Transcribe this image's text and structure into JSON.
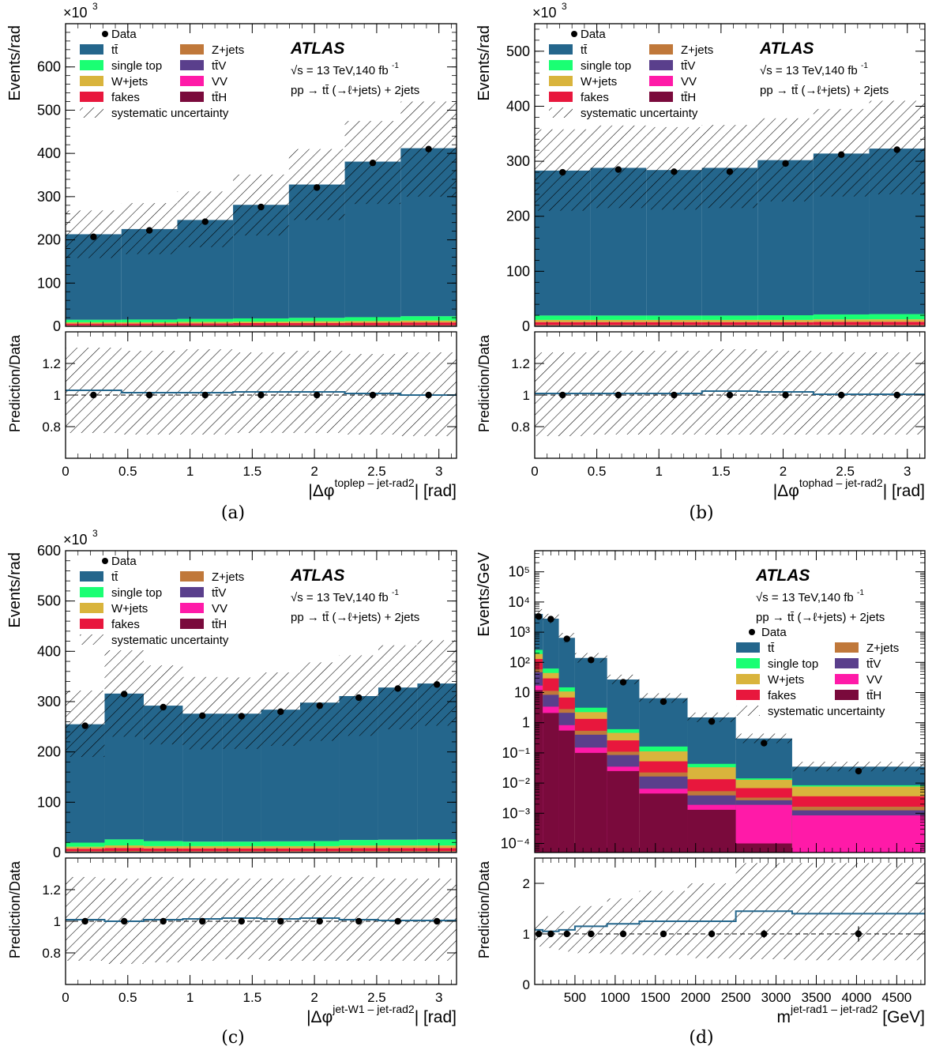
{
  "colors": {
    "ttbar": "#24668c",
    "single_top": "#1aff73",
    "wjets": "#d9b43c",
    "fakes": "#e8173d",
    "zjets": "#c0783a",
    "ttv": "#5a3f8c",
    "vv": "#ff1aa8",
    "tth": "#7a0a3c",
    "data": "#000000",
    "ratio_line": "#24668c"
  },
  "legend": {
    "data": "Data",
    "ttbar": "tt̄",
    "single_top": "single top",
    "wjets": "W+jets",
    "fakes": "fakes",
    "zjets": "Z+jets",
    "ttv": "tt̄V",
    "vv": "VV",
    "tth": "tt̄H",
    "syst": "systematic uncertainty"
  },
  "atlas": {
    "label": "ATLAS",
    "energy": "√s = 13 TeV,140 fb",
    "energy_sup": "-1",
    "process": "pp → tt̄ (→ℓ+jets) + 2jets"
  },
  "chart_data": [
    {
      "type": "bar",
      "caption": "(a)",
      "ylabel": "Events/rad",
      "ratio_ylabel": "Prediction/Data",
      "xlabel_main": "|Δφ",
      "xlabel_sup": "toplep – jet-rad2",
      "xlabel_tail": "| [rad]",
      "y_multiplier": "×10",
      "y_multiplier_sup": "3",
      "xlim": [
        0,
        3.1416
      ],
      "ylim": [
        0,
        700
      ],
      "ratio_ylim": [
        0.6,
        1.4
      ],
      "xticks": [
        "0",
        "0.5",
        "1",
        "1.5",
        "2",
        "2.5",
        "3"
      ],
      "xtick_values": [
        0,
        0.5,
        1,
        1.5,
        2,
        2.5,
        3
      ],
      "yticks": [
        "0",
        "100",
        "200",
        "300",
        "400",
        "500",
        "600"
      ],
      "ytick_values": [
        0,
        100,
        200,
        300,
        400,
        500,
        600
      ],
      "ratio_yticks": [
        "0.8",
        "1",
        "1.2"
      ],
      "ratio_ytick_values": [
        0.8,
        1.0,
        1.2
      ],
      "bin_edges": [
        0,
        0.449,
        0.898,
        1.346,
        1.795,
        2.244,
        2.693,
        3.1416
      ],
      "data": [
        207,
        222,
        242,
        276,
        321,
        378,
        410
      ],
      "total": [
        213,
        225,
        246,
        281,
        328,
        381,
        412
      ],
      "unc_low": [
        158,
        167,
        183,
        210,
        246,
        283,
        300
      ],
      "unc_high": [
        268,
        285,
        312,
        351,
        410,
        475,
        520
      ],
      "bkg": {
        "single_top": [
          6,
          6.5,
          7,
          7.5,
          8,
          9,
          10
        ],
        "wjets": [
          3,
          3,
          3.5,
          3.5,
          4,
          4,
          4.5
        ],
        "fakes": [
          4,
          4,
          4.5,
          5,
          5,
          5.5,
          6
        ],
        "zjets": [
          1,
          1,
          1,
          1,
          1.2,
          1.2,
          1.3
        ],
        "ttv": [
          0.5,
          0.5,
          0.5,
          0.5,
          0.6,
          0.6,
          0.7
        ],
        "vv": [
          0.3,
          0.3,
          0.3,
          0.3,
          0.3,
          0.3,
          0.3
        ],
        "tth": [
          0.4,
          0.4,
          0.4,
          0.5,
          0.5,
          0.5,
          0.6
        ]
      },
      "ratio": [
        1.03,
        1.015,
        1.015,
        1.02,
        1.02,
        1.01,
        1.0
      ],
      "ratio_unc_low": [
        0.76,
        0.75,
        0.75,
        0.76,
        0.76,
        0.75,
        0.74
      ],
      "ratio_unc_high": [
        1.3,
        1.28,
        1.29,
        1.27,
        1.28,
        1.26,
        1.27
      ]
    },
    {
      "type": "bar",
      "caption": "(b)",
      "ylabel": "Events/rad",
      "ratio_ylabel": "Prediction/Data",
      "xlabel_main": "|Δφ",
      "xlabel_sup": "tophad – jet-rad2",
      "xlabel_tail": "| [rad]",
      "y_multiplier": "×10",
      "y_multiplier_sup": "3",
      "xlim": [
        0,
        3.1416
      ],
      "ylim": [
        0,
        550
      ],
      "ratio_ylim": [
        0.6,
        1.4
      ],
      "xticks": [
        "0",
        "0.5",
        "1",
        "1.5",
        "2",
        "2.5",
        "3"
      ],
      "xtick_values": [
        0,
        0.5,
        1,
        1.5,
        2,
        2.5,
        3
      ],
      "yticks": [
        "0",
        "100",
        "200",
        "300",
        "400",
        "500"
      ],
      "ytick_values": [
        0,
        100,
        200,
        300,
        400,
        500
      ],
      "ratio_yticks": [
        "0.8",
        "1",
        "1.2"
      ],
      "ratio_ytick_values": [
        0.8,
        1.0,
        1.2
      ],
      "bin_edges": [
        0,
        0.449,
        0.898,
        1.346,
        1.795,
        2.244,
        2.693,
        3.1416
      ],
      "data": [
        280,
        285,
        281,
        281,
        296,
        312,
        321
      ],
      "total": [
        283,
        288,
        284,
        288,
        302,
        314,
        323
      ],
      "unc_low": [
        210,
        215,
        212,
        215,
        227,
        236,
        240
      ],
      "unc_high": [
        358,
        365,
        362,
        366,
        378,
        395,
        410
      ],
      "bkg": {
        "single_top": [
          8,
          8,
          8,
          8,
          8.5,
          9,
          9.5
        ],
        "wjets": [
          4,
          4,
          4,
          4,
          4,
          4.5,
          4.5
        ],
        "fakes": [
          5,
          5,
          5,
          5,
          5,
          5.5,
          5.5
        ],
        "zjets": [
          1.2,
          1.2,
          1.2,
          1.2,
          1.2,
          1.2,
          1.3
        ],
        "ttv": [
          0.6,
          0.6,
          0.6,
          0.6,
          0.6,
          0.6,
          0.6
        ],
        "vv": [
          0.3,
          0.3,
          0.3,
          0.3,
          0.3,
          0.3,
          0.3
        ],
        "tth": [
          0.5,
          0.5,
          0.5,
          0.5,
          0.5,
          0.5,
          0.5
        ]
      },
      "ratio": [
        1.01,
        1.01,
        1.01,
        1.025,
        1.02,
        1.005,
        1.005
      ],
      "ratio_unc_low": [
        0.74,
        0.75,
        0.75,
        0.75,
        0.75,
        0.75,
        0.75
      ],
      "ratio_unc_high": [
        1.27,
        1.28,
        1.28,
        1.29,
        1.28,
        1.27,
        1.27
      ]
    },
    {
      "type": "bar",
      "caption": "(c)",
      "ylabel": "Events/rad",
      "ratio_ylabel": "Prediction/Data",
      "xlabel_main": "|Δφ",
      "xlabel_sup": "jet-W1 – jet-rad2",
      "xlabel_tail": "| [rad]",
      "y_multiplier": "×10",
      "y_multiplier_sup": "3",
      "xlim": [
        0,
        3.1416
      ],
      "ylim": [
        0,
        600
      ],
      "ratio_ylim": [
        0.6,
        1.4
      ],
      "xticks": [
        "0",
        "0.5",
        "1",
        "1.5",
        "2",
        "2.5",
        "3"
      ],
      "xtick_values": [
        0,
        0.5,
        1,
        1.5,
        2,
        2.5,
        3
      ],
      "yticks": [
        "0",
        "100",
        "200",
        "300",
        "400",
        "500",
        "600"
      ],
      "ytick_values": [
        0,
        100,
        200,
        300,
        400,
        500,
        600
      ],
      "ratio_yticks": [
        "0.8",
        "1",
        "1.2"
      ],
      "ratio_ytick_values": [
        0.8,
        1.0,
        1.2
      ],
      "bin_edges": [
        0,
        0.314,
        0.628,
        0.942,
        1.257,
        1.571,
        1.885,
        2.199,
        2.513,
        2.827,
        3.1416
      ],
      "data": [
        252,
        315,
        289,
        272,
        271,
        280,
        292,
        308,
        326,
        334
      ],
      "total": [
        255,
        316,
        292,
        276,
        276,
        284,
        298,
        311,
        328,
        336
      ],
      "unc_low": [
        190,
        230,
        215,
        205,
        206,
        212,
        222,
        232,
        245,
        252
      ],
      "unc_high": [
        322,
        402,
        372,
        349,
        348,
        358,
        378,
        392,
        412,
        422
      ],
      "bkg": {
        "single_top": [
          8,
          12,
          10,
          9,
          9,
          9.5,
          10,
          11,
          11.5,
          12
        ],
        "wjets": [
          4,
          5,
          4.5,
          4.5,
          4.5,
          4.5,
          4.5,
          5,
          5,
          5
        ],
        "fakes": [
          5,
          6,
          5.5,
          5.5,
          5.5,
          5.5,
          5.5,
          6,
          6,
          6
        ],
        "zjets": [
          1.2,
          1.5,
          1.3,
          1.3,
          1.3,
          1.3,
          1.3,
          1.4,
          1.4,
          1.4
        ],
        "ttv": [
          0.6,
          0.7,
          0.6,
          0.6,
          0.6,
          0.6,
          0.6,
          0.7,
          0.7,
          0.7
        ],
        "vv": [
          0.3,
          0.3,
          0.3,
          0.3,
          0.3,
          0.3,
          0.3,
          0.3,
          0.3,
          0.3
        ],
        "tth": [
          0.5,
          0.6,
          0.5,
          0.5,
          0.5,
          0.5,
          0.5,
          0.6,
          0.6,
          0.6
        ]
      },
      "ratio": [
        1.01,
        1.0,
        1.01,
        1.015,
        1.02,
        1.015,
        1.02,
        1.01,
        1.005,
        1.005
      ],
      "ratio_unc_low": [
        0.75,
        0.73,
        0.74,
        0.75,
        0.76,
        0.75,
        0.75,
        0.75,
        0.75,
        0.75
      ],
      "ratio_unc_high": [
        1.28,
        1.27,
        1.28,
        1.27,
        1.27,
        1.27,
        1.29,
        1.28,
        1.27,
        1.27
      ]
    },
    {
      "type": "bar",
      "caption": "(d)",
      "log": true,
      "ylabel": "Events/GeV",
      "ratio_ylabel": "Prediction/Data",
      "xlabel_main": "m",
      "xlabel_sup": "jet-rad1 – jet-rad2",
      "xlabel_tail": " [GeV]",
      "xlim": [
        0,
        4850
      ],
      "ylim": [
        5e-05,
        500000
      ],
      "ratio_ylim": [
        0,
        2.5
      ],
      "xticks": [
        "500",
        "1000",
        "1500",
        "2000",
        "2500",
        "3000",
        "3500",
        "4000",
        "4500"
      ],
      "xtick_values": [
        500,
        1000,
        1500,
        2000,
        2500,
        3000,
        3500,
        4000,
        4500
      ],
      "yticks": [
        "10⁻⁴",
        "10⁻³",
        "10⁻²",
        "10⁻¹",
        "1",
        "10",
        "10²",
        "10³",
        "10⁴",
        "10⁵"
      ],
      "ytick_values": [
        0.0001,
        0.001,
        0.01,
        0.1,
        1,
        10,
        100,
        1000,
        10000,
        100000
      ],
      "ratio_yticks": [
        "0",
        "1",
        "2"
      ],
      "ratio_ytick_values": [
        0,
        1,
        2
      ],
      "bin_edges": [
        0,
        100,
        300,
        500,
        900,
        1300,
        1900,
        2500,
        3200,
        4850
      ],
      "data": [
        3300,
        2700,
        600,
        120,
        22,
        5,
        1.1,
        0.21,
        0.025
      ],
      "total": [
        4000,
        2800,
        650,
        140,
        27,
        6.5,
        1.5,
        0.3,
        0.035
      ],
      "bkg": {
        "tth": [
          12,
          2.1,
          0.55,
          0.1,
          0.025,
          0.0045,
          0.0013,
          0.0001,
          5e-05
        ],
        "vv": [
          5,
          1.3,
          0.28,
          0.05,
          0.01,
          0.002,
          0.0006,
          0.0018,
          0.0008
        ],
        "ttv": [
          30,
          5,
          1.3,
          0.25,
          0.05,
          0.01,
          0.002,
          0.0008,
          0.0004
        ],
        "zjets": [
          12,
          3,
          0.7,
          0.14,
          0.025,
          0.006,
          0.0015,
          0.0006,
          0.0004
        ],
        "fakes": [
          70,
          18,
          4,
          0.8,
          0.15,
          0.03,
          0.008,
          0.0035,
          0.002
        ],
        "wjets": [
          60,
          15,
          4,
          0.9,
          0.2,
          0.06,
          0.02,
          0.006,
          0.004
        ],
        "single_top": [
          70,
          18,
          4,
          0.9,
          0.15,
          0.05,
          0.01,
          0.0015,
          0.0008
        ]
      },
      "ratio": [
        1.08,
        1.05,
        1.08,
        1.15,
        1.2,
        1.25,
        1.25,
        1.45,
        1.4
      ],
      "ratio_unc_low": [
        0.75,
        0.72,
        0.65,
        0.62,
        0.6,
        0.58,
        0.52,
        0.5,
        0.48
      ],
      "ratio_unc_high": [
        1.3,
        1.35,
        1.45,
        1.55,
        1.7,
        1.85,
        2.0,
        2.4,
        2.4
      ],
      "data_ratio_err": [
        0.01,
        0.01,
        0.02,
        0.03,
        0.05,
        0.06,
        0.07,
        0.08,
        0.15
      ]
    }
  ]
}
